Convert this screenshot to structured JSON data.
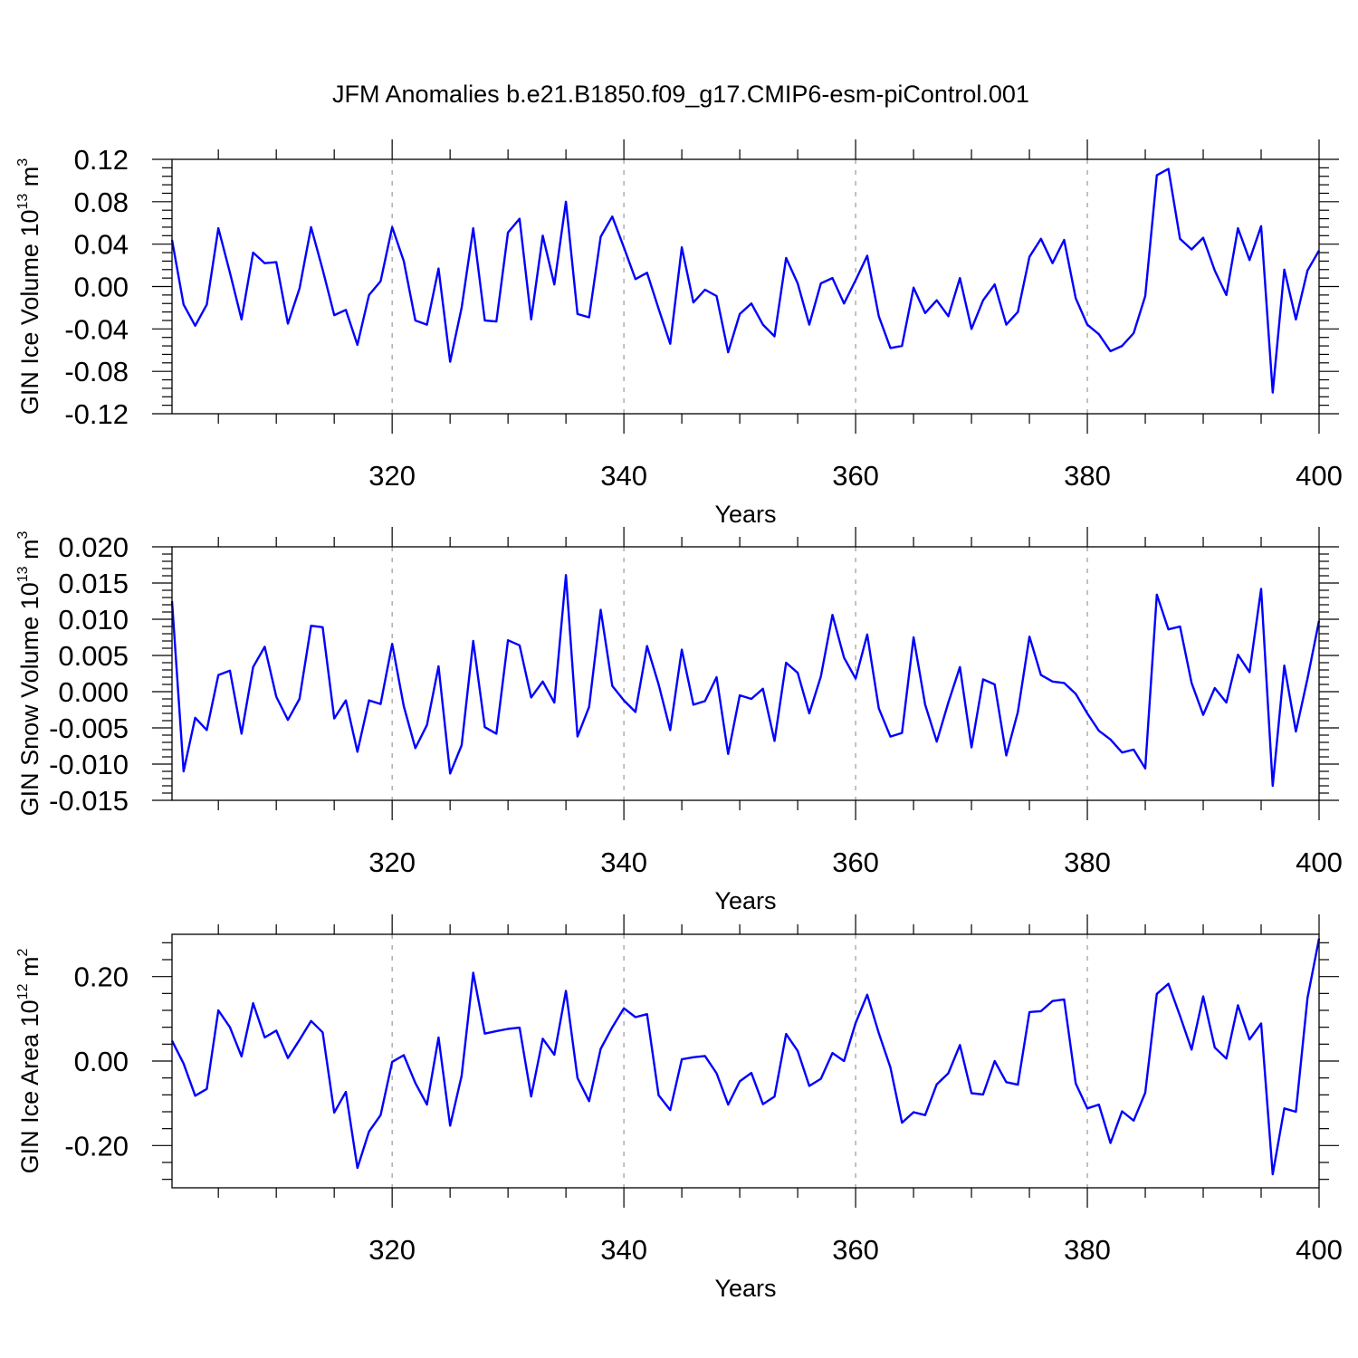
{
  "title": "JFM Anomalies b.e21.B1850.f09_g17.CMIP6-esm-piControl.001",
  "line_color": "#0000ff",
  "chart_data": [
    {
      "type": "line",
      "xlabel": "Years",
      "ylabel": {
        "pre": "GIN Ice Volume 10",
        "exp": "13",
        "mid": " m",
        "exp2": "3"
      },
      "xlim": [
        301,
        400
      ],
      "ylim": [
        -0.12,
        0.12
      ],
      "x_ticks": [
        320,
        340,
        360,
        380,
        400
      ],
      "y_ticks": [
        "0.12",
        "0.08",
        "0.04",
        "0.00",
        "-0.04",
        "-0.08",
        "-0.12"
      ],
      "grid": "vertical dashed at major x ticks",
      "series": [
        {
          "x_start": 301,
          "values": [
            0.044,
            -0.017,
            -0.037,
            -0.017,
            0.055,
            0.013,
            -0.031,
            0.032,
            0.022,
            0.023,
            -0.035,
            -0.002,
            0.056,
            0.016,
            -0.027,
            -0.022,
            -0.055,
            -0.008,
            0.005,
            0.056,
            0.024,
            -0.032,
            -0.036,
            0.017,
            -0.071,
            -0.02,
            0.055,
            -0.032,
            -0.033,
            0.051,
            0.064,
            -0.031,
            0.048,
            0.002,
            0.08,
            -0.026,
            -0.029,
            0.047,
            0.066,
            0.037,
            0.007,
            0.013,
            -0.021,
            -0.054,
            0.037,
            -0.015,
            -0.003,
            -0.009,
            -0.062,
            -0.026,
            -0.016,
            -0.036,
            -0.047,
            0.027,
            0.003,
            -0.036,
            0.003,
            0.008,
            -0.016,
            0.006,
            0.029,
            -0.028,
            -0.058,
            -0.056,
            -0.001,
            -0.025,
            -0.013,
            -0.028,
            0.008,
            -0.04,
            -0.013,
            0.002,
            -0.036,
            -0.024,
            0.028,
            0.045,
            0.022,
            0.044,
            -0.011,
            -0.036,
            -0.045,
            -0.061,
            -0.056,
            -0.044,
            -0.009,
            0.105,
            0.111,
            0.045,
            0.035,
            0.046,
            0.015,
            -0.008,
            0.055,
            0.025,
            0.057,
            -0.1,
            0.016,
            -0.031,
            0.015,
            0.034
          ]
        }
      ]
    },
    {
      "type": "line",
      "xlabel": "Years",
      "ylabel": {
        "pre": "GIN Snow Volume 10",
        "exp": "13",
        "mid": " m",
        "exp2": "3"
      },
      "xlim": [
        301,
        400
      ],
      "ylim": [
        -0.015,
        0.02
      ],
      "x_ticks": [
        320,
        340,
        360,
        380,
        400
      ],
      "y_ticks": [
        "0.020",
        "0.015",
        "0.010",
        "0.005",
        "0.000",
        "-0.005",
        "-0.010",
        "-0.015"
      ],
      "grid": "vertical dashed at major x ticks",
      "series": [
        {
          "x_start": 301,
          "values": [
            0.0125,
            -0.011,
            -0.0036,
            -0.0053,
            0.0023,
            0.0029,
            -0.0058,
            0.0034,
            0.0062,
            -0.0007,
            -0.0039,
            -0.001,
            0.0091,
            0.0089,
            -0.0037,
            -0.0012,
            -0.0083,
            -0.0012,
            -0.0017,
            0.0066,
            -0.002,
            -0.0078,
            -0.0046,
            0.0035,
            -0.0113,
            -0.0074,
            0.007,
            -0.0049,
            -0.0058,
            0.0071,
            0.0064,
            -0.0008,
            0.0014,
            -0.0015,
            0.0161,
            -0.0062,
            -0.0021,
            0.0113,
            0.0008,
            -0.0012,
            -0.0028,
            0.0063,
            0.001,
            -0.0053,
            0.0058,
            -0.0018,
            -0.0013,
            0.002,
            -0.0086,
            -0.0005,
            -0.001,
            0.0004,
            -0.0068,
            0.004,
            0.0026,
            -0.003,
            0.0021,
            0.0106,
            0.0047,
            0.0018,
            0.0079,
            -0.0023,
            -0.0062,
            -0.0057,
            0.0075,
            -0.0018,
            -0.0069,
            -0.0015,
            0.0034,
            -0.0077,
            0.0017,
            0.001,
            -0.0088,
            -0.0028,
            0.0076,
            0.0023,
            0.0014,
            0.0012,
            -0.0003,
            -0.003,
            -0.0054,
            -0.0066,
            -0.0084,
            -0.008,
            -0.0106,
            0.0134,
            0.0086,
            0.009,
            0.0012,
            -0.0032,
            0.0005,
            -0.0015,
            0.0051,
            0.0027,
            0.0142,
            -0.013,
            0.0036,
            -0.0055,
            0.0018,
            0.0098
          ]
        }
      ]
    },
    {
      "type": "line",
      "xlabel": "Years",
      "ylabel": {
        "pre": "GIN Ice Area 10",
        "exp": "12",
        "mid": " m",
        "exp2": "2"
      },
      "xlim": [
        301,
        400
      ],
      "ylim": [
        -0.3,
        0.3
      ],
      "x_ticks": [
        320,
        340,
        360,
        380,
        400
      ],
      "y_ticks": [
        "0.20",
        "0.00",
        "-0.20"
      ],
      "grid": "vertical dashed at major x ticks",
      "series": [
        {
          "x_start": 301,
          "values": [
            0.048,
            -0.006,
            -0.082,
            -0.066,
            0.12,
            0.08,
            0.011,
            0.137,
            0.056,
            0.072,
            0.007,
            0.05,
            0.095,
            0.068,
            -0.122,
            -0.073,
            -0.253,
            -0.167,
            -0.128,
            -0.002,
            0.014,
            -0.052,
            -0.103,
            0.056,
            -0.153,
            -0.035,
            0.209,
            0.065,
            0.071,
            0.076,
            0.079,
            -0.084,
            0.053,
            0.015,
            0.166,
            -0.04,
            -0.095,
            0.029,
            0.08,
            0.125,
            0.104,
            0.111,
            -0.081,
            -0.116,
            0.004,
            0.009,
            0.012,
            -0.029,
            -0.103,
            -0.048,
            -0.028,
            -0.102,
            -0.084,
            0.064,
            0.024,
            -0.059,
            -0.042,
            0.019,
            0.0,
            0.09,
            0.157,
            0.066,
            -0.015,
            -0.146,
            -0.121,
            -0.128,
            -0.055,
            -0.029,
            0.038,
            -0.076,
            -0.079,
            0.0,
            -0.05,
            -0.056,
            0.116,
            0.118,
            0.142,
            0.146,
            -0.053,
            -0.112,
            -0.103,
            -0.194,
            -0.119,
            -0.141,
            -0.075,
            0.159,
            0.183,
            0.107,
            0.027,
            0.153,
            0.032,
            0.006,
            0.132,
            0.051,
            0.089,
            -0.268,
            -0.112,
            -0.12,
            0.149,
            0.29
          ]
        }
      ]
    }
  ]
}
